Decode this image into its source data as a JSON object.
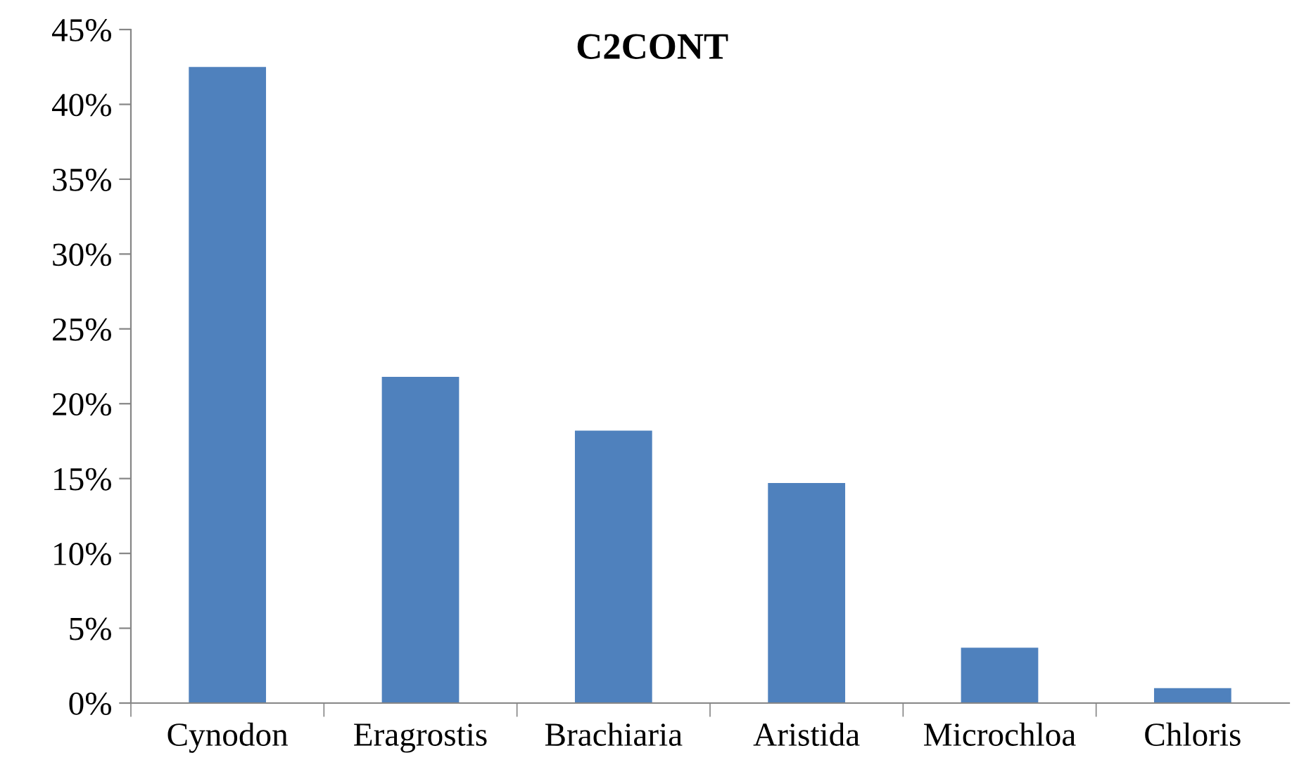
{
  "chart_data": {
    "type": "bar",
    "title": "C2CONT",
    "categories": [
      "Cynodon",
      "Eragrostis",
      "Brachiaria",
      "Aristida",
      "Microchloa",
      "Chloris"
    ],
    "values": [
      42.5,
      21.8,
      18.2,
      14.7,
      3.7,
      1.0
    ],
    "color": "#4f81bd",
    "ylim": [
      0,
      45
    ],
    "yticks": [
      {
        "value": 0,
        "label": "0%"
      },
      {
        "value": 5,
        "label": "5%"
      },
      {
        "value": 10,
        "label": "10%"
      },
      {
        "value": 15,
        "label": "15%"
      },
      {
        "value": 20,
        "label": "20%"
      },
      {
        "value": 25,
        "label": "25%"
      },
      {
        "value": 30,
        "label": "30%"
      },
      {
        "value": 35,
        "label": "35%"
      },
      {
        "value": 40,
        "label": "40%"
      },
      {
        "value": 45,
        "label": "45%"
      }
    ],
    "grid": false,
    "legend": false
  }
}
